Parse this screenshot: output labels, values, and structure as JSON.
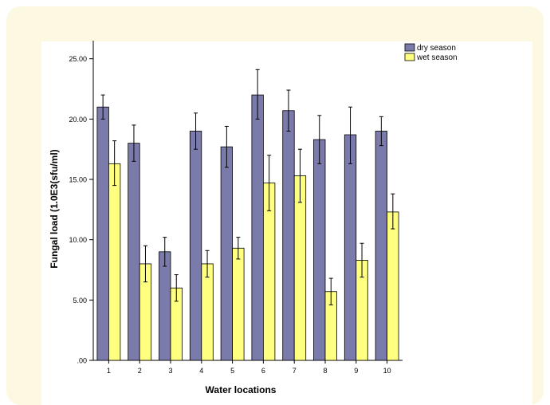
{
  "chart_data": {
    "type": "bar",
    "xlabel": "Water locations",
    "ylabel": "Fungal load (1.0E3(sfu/ml)",
    "ylim": [
      0,
      26.5
    ],
    "yticks": [
      ".00",
      "5.00",
      "10.00",
      "15.00",
      "20.00",
      "25.00"
    ],
    "yticks_values": [
      0,
      5,
      10,
      15,
      20,
      25
    ],
    "categories": [
      "1",
      "2",
      "3",
      "4",
      "5",
      "6",
      "7",
      "8",
      "9",
      "10"
    ],
    "legend_position": "top-right",
    "error_bars": true,
    "series": [
      {
        "name": "dry season",
        "color": "#7b7bab",
        "values": [
          21.0,
          18.0,
          9.0,
          19.0,
          17.7,
          22.0,
          20.7,
          18.3,
          18.7,
          19.0
        ],
        "error_low": [
          20.0,
          16.5,
          7.8,
          17.5,
          16.0,
          20.0,
          19.0,
          16.3,
          16.3,
          17.8
        ],
        "error_high": [
          22.0,
          19.5,
          10.2,
          20.5,
          19.4,
          24.1,
          22.4,
          20.3,
          21.0,
          20.2
        ]
      },
      {
        "name": "wet season",
        "color": "#ffff80",
        "values": [
          16.3,
          8.0,
          6.0,
          8.0,
          9.3,
          14.7,
          15.3,
          5.7,
          8.3,
          12.3
        ],
        "error_low": [
          14.5,
          6.5,
          4.9,
          6.9,
          8.4,
          12.4,
          13.1,
          4.6,
          6.9,
          10.9
        ],
        "error_high": [
          18.2,
          9.5,
          7.1,
          9.1,
          10.2,
          17.0,
          17.5,
          6.8,
          9.7,
          13.8
        ]
      }
    ]
  }
}
